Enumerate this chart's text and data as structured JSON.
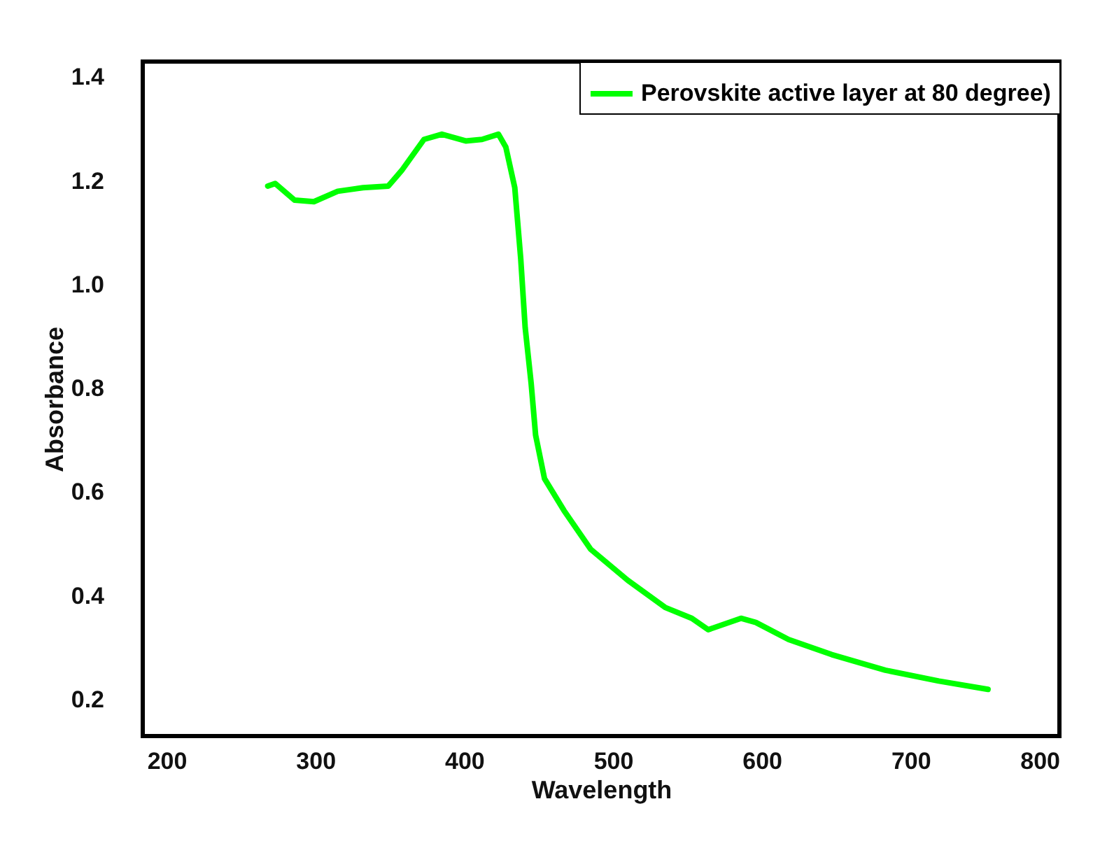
{
  "chart_data": {
    "type": "line",
    "xlabel": "Wavelength",
    "ylabel": "Absorbance",
    "xlim": [
      184,
      800
    ],
    "ylim": [
      0.13,
      1.43
    ],
    "xticks": [
      200,
      300,
      400,
      500,
      600,
      700,
      800
    ],
    "yticks": [
      0.2,
      0.4,
      0.6,
      0.8,
      {
        "value": 1,
        "label": "1.0"
      },
      1.2,
      1.4
    ],
    "grid": false,
    "legend": "top right",
    "marker": "none",
    "line_style": "solid",
    "series": [
      {
        "name": "Perovskite active layer at 80 degree)",
        "color": "#00ff00",
        "x": [
          268,
          273,
          286,
          299,
          315,
          332,
          349,
          358,
          373,
          385,
          401,
          412,
          423,
          428,
          434,
          438,
          441,
          445,
          448,
          454,
          467,
          485,
          510,
          535,
          553,
          564,
          586,
          596,
          618,
          647,
          683,
          719,
          752
        ],
        "values": [
          1.19,
          1.195,
          1.163,
          1.16,
          1.18,
          1.187,
          1.19,
          1.22,
          1.28,
          1.29,
          1.277,
          1.28,
          1.29,
          1.265,
          1.187,
          1.05,
          0.917,
          0.81,
          0.71,
          0.626,
          0.565,
          0.49,
          0.43,
          0.378,
          0.357,
          0.335,
          0.357,
          0.349,
          0.316,
          0.287,
          0.257,
          0.236,
          0.22
        ]
      }
    ]
  }
}
